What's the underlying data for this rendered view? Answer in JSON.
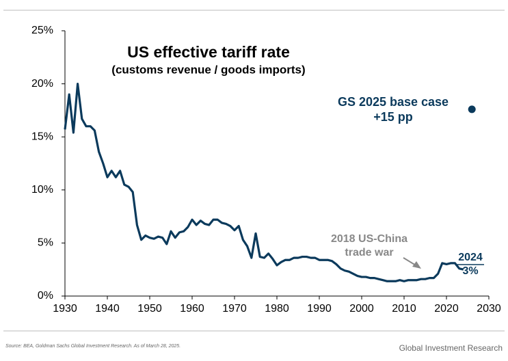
{
  "chart_data": {
    "type": "line",
    "title": "US effective tariff rate",
    "subtitle": "(customs revenue / goods imports)",
    "x": [
      1930,
      1931,
      1932,
      1933,
      1934,
      1935,
      1936,
      1937,
      1938,
      1939,
      1940,
      1941,
      1942,
      1943,
      1944,
      1945,
      1946,
      1947,
      1948,
      1949,
      1950,
      1951,
      1952,
      1953,
      1954,
      1955,
      1956,
      1957,
      1958,
      1959,
      1960,
      1961,
      1962,
      1963,
      1964,
      1965,
      1966,
      1967,
      1968,
      1969,
      1970,
      1971,
      1972,
      1973,
      1974,
      1975,
      1976,
      1977,
      1978,
      1979,
      1980,
      1981,
      1982,
      1983,
      1984,
      1985,
      1986,
      1987,
      1988,
      1989,
      1990,
      1991,
      1992,
      1993,
      1994,
      1995,
      1996,
      1997,
      1998,
      1999,
      2000,
      2001,
      2002,
      2003,
      2004,
      2005,
      2006,
      2007,
      2008,
      2009,
      2010,
      2011,
      2012,
      2013,
      2014,
      2015,
      2016,
      2017,
      2018,
      2019,
      2020,
      2021,
      2022,
      2023,
      2024
    ],
    "series": [
      {
        "color": "#0b3a5c",
        "values": [
          15.7,
          19.0,
          15.4,
          20.0,
          16.7,
          16.0,
          16.0,
          15.6,
          13.6,
          12.5,
          11.2,
          11.8,
          11.2,
          11.8,
          10.5,
          10.3,
          9.8,
          6.7,
          5.3,
          5.7,
          5.5,
          5.4,
          5.6,
          5.5,
          4.9,
          6.1,
          5.5,
          6.0,
          6.1,
          6.5,
          7.2,
          6.7,
          7.1,
          6.8,
          6.7,
          7.2,
          7.2,
          6.9,
          6.8,
          6.6,
          6.2,
          6.6,
          5.3,
          4.7,
          3.6,
          5.9,
          3.7,
          3.6,
          4.0,
          3.5,
          2.9,
          3.2,
          3.4,
          3.4,
          3.6,
          3.6,
          3.7,
          3.7,
          3.6,
          3.6,
          3.4,
          3.4,
          3.4,
          3.3,
          3.0,
          2.6,
          2.4,
          2.3,
          2.1,
          1.9,
          1.8,
          1.8,
          1.7,
          1.7,
          1.6,
          1.5,
          1.4,
          1.4,
          1.4,
          1.5,
          1.4,
          1.5,
          1.5,
          1.5,
          1.6,
          1.6,
          1.7,
          1.7,
          2.1,
          3.1,
          3.0,
          3.1,
          3.1,
          2.6,
          2.5
        ]
      }
    ],
    "projection": {
      "x": 2026,
      "value": 17.6,
      "color": "#0b3a5c",
      "labels": [
        "GS 2025 base case",
        "+15 pp"
      ]
    },
    "annotations": {
      "trade_war": [
        "2018 US-China",
        "trade war"
      ],
      "latest": [
        "2024",
        "3%"
      ]
    },
    "xlim": [
      1930,
      2030
    ],
    "xticks": [
      1930,
      1940,
      1950,
      1960,
      1970,
      1980,
      1990,
      2000,
      2010,
      2020,
      2030
    ],
    "ylim": [
      0,
      25
    ],
    "yticks": [
      {
        "value": 0,
        "label": "0%"
      },
      {
        "value": 5,
        "label": "5%"
      },
      {
        "value": 10,
        "label": "10%"
      },
      {
        "value": 15,
        "label": "15%"
      },
      {
        "value": 20,
        "label": "20%"
      },
      {
        "value": 25,
        "label": "25%"
      }
    ],
    "source": "Source: BEA, Goldman Sachs Global Investment Research. As of March 28, 2025.",
    "brand": "Global Investment Research"
  }
}
